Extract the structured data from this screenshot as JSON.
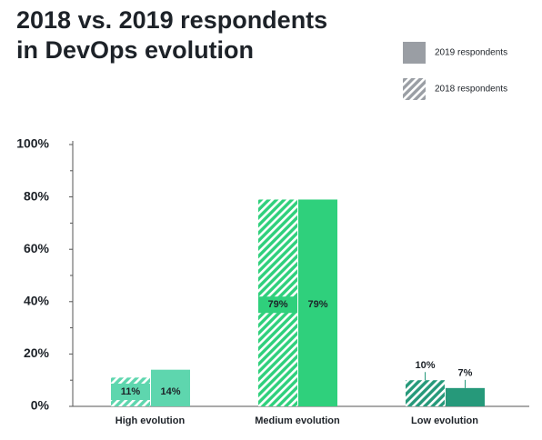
{
  "chart_data": {
    "type": "bar",
    "title": "2018 vs. 2019 respondents in DevOps evolution",
    "categories": [
      "High evolution",
      "Medium evolution",
      "Low evolution"
    ],
    "category_colors": [
      "#5ed6ae",
      "#2fd07c",
      "#26997a"
    ],
    "series": [
      {
        "name": "2018 respondents",
        "color": "#9a9ea4",
        "hatched": true,
        "values": [
          11,
          79,
          10
        ],
        "value_labels": [
          "11%",
          "79%",
          "10%"
        ]
      },
      {
        "name": "2019 respondents",
        "color": "#9a9ea4",
        "hatched": false,
        "values": [
          14,
          79,
          7
        ],
        "value_labels": [
          "14%",
          "79%",
          "7%"
        ]
      }
    ],
    "ylim": [
      0,
      100
    ],
    "yticks": [
      {
        "value": 0,
        "label": "0%"
      },
      {
        "value": 20,
        "label": "20%"
      },
      {
        "value": 40,
        "label": "40%"
      },
      {
        "value": 60,
        "label": "60%"
      },
      {
        "value": 80,
        "label": "80%"
      },
      {
        "value": 100,
        "label": "100%"
      }
    ]
  }
}
